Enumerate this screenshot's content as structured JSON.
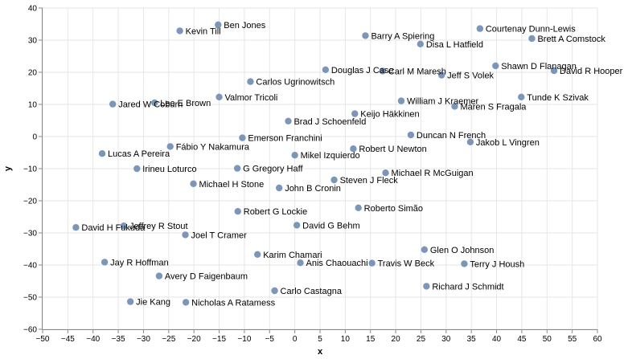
{
  "chart_data": {
    "type": "scatter",
    "title": "",
    "xlabel": "x",
    "ylabel": "y",
    "xlim": [
      -50,
      60
    ],
    "ylim": [
      -60,
      40
    ],
    "x_ticks": [
      -50,
      -45,
      -40,
      -35,
      -30,
      -25,
      -20,
      -15,
      -10,
      -5,
      0,
      5,
      10,
      15,
      20,
      25,
      30,
      35,
      40,
      45,
      50,
      55,
      60
    ],
    "y_ticks": [
      -60,
      -50,
      -40,
      -30,
      -20,
      -10,
      0,
      10,
      20,
      30,
      40
    ],
    "grid": true,
    "point_color": "#7b96b8",
    "points": [
      {
        "label": "Ben Jones",
        "x": -15.2,
        "y": 34.8
      },
      {
        "label": "Kevin Till",
        "x": -22.8,
        "y": 32.9
      },
      {
        "label": "Barry A Spiering",
        "x": 14.0,
        "y": 31.4
      },
      {
        "label": "Disa L Hatfield",
        "x": 24.9,
        "y": 28.8
      },
      {
        "label": "Courtenay Dunn-Lewis",
        "x": 36.7,
        "y": 33.6
      },
      {
        "label": "Brett A Comstock",
        "x": 47.0,
        "y": 30.5
      },
      {
        "label": "Shawn D Flanagan",
        "x": 39.8,
        "y": 22.0
      },
      {
        "label": "David R Hooper",
        "x": 51.4,
        "y": 20.5
      },
      {
        "label": "Douglas J Case",
        "x": 6.1,
        "y": 20.8
      },
      {
        "label": "Carl M Maresh",
        "x": 17.4,
        "y": 20.4
      },
      {
        "label": "Jeff S Volek",
        "x": 29.1,
        "y": 19.1
      },
      {
        "label": "Carlos Ugrinowitsch",
        "x": -8.8,
        "y": 17.1
      },
      {
        "label": "Valmor Tricoli",
        "x": -15.0,
        "y": 12.3
      },
      {
        "label": "Lee E Brown",
        "x": -27.8,
        "y": 10.5
      },
      {
        "label": "Jared W Coburn",
        "x": -36.1,
        "y": 10.1
      },
      {
        "label": "Tunde K Szivak",
        "x": 44.9,
        "y": 12.3
      },
      {
        "label": "William J Kraemer",
        "x": 21.1,
        "y": 11.1
      },
      {
        "label": "Maren S Fragala",
        "x": 31.7,
        "y": 9.4
      },
      {
        "label": "Keijo Häkkinen",
        "x": 11.9,
        "y": 7.1
      },
      {
        "label": "Brad J Schoenfeld",
        "x": -1.3,
        "y": 4.8
      },
      {
        "label": "Duncan N French",
        "x": 23.0,
        "y": 0.5
      },
      {
        "label": "Jakob L Vingren",
        "x": 34.8,
        "y": -1.7
      },
      {
        "label": "Emerson Franchini",
        "x": -10.4,
        "y": -0.4
      },
      {
        "label": "Fábio Y Nakamura",
        "x": -24.7,
        "y": -3.1
      },
      {
        "label": "Lucas A Pereira",
        "x": -38.2,
        "y": -5.3
      },
      {
        "label": "Robert U Newton",
        "x": 11.6,
        "y": -3.8
      },
      {
        "label": "Mikel Izquierdo",
        "x": 0.0,
        "y": -5.8
      },
      {
        "label": "Irineu Loturco",
        "x": -31.3,
        "y": -10.0
      },
      {
        "label": "G Gregory Haff",
        "x": -11.4,
        "y": -9.9
      },
      {
        "label": "Michael R McGuigan",
        "x": 18.0,
        "y": -11.3
      },
      {
        "label": "Steven J Fleck",
        "x": 7.8,
        "y": -13.5
      },
      {
        "label": "Michael H Stone",
        "x": -20.1,
        "y": -14.7
      },
      {
        "label": "John B Cronin",
        "x": -3.1,
        "y": -16.0
      },
      {
        "label": "Robert G Lockie",
        "x": -11.3,
        "y": -23.3
      },
      {
        "label": "Roberto Simão",
        "x": 12.6,
        "y": -22.2
      },
      {
        "label": "David G Behm",
        "x": 0.4,
        "y": -27.6
      },
      {
        "label": "David H Fukuda",
        "x": -43.4,
        "y": -28.3
      },
      {
        "label": "Jeffrey R Stout",
        "x": -33.9,
        "y": -27.8
      },
      {
        "label": "Joel T Cramer",
        "x": -21.7,
        "y": -30.6
      },
      {
        "label": "Glen O Johnson",
        "x": 25.7,
        "y": -35.2
      },
      {
        "label": "Karim Chamari",
        "x": -7.4,
        "y": -36.7
      },
      {
        "label": "Jay R Hoffman",
        "x": -37.7,
        "y": -39.1
      },
      {
        "label": "Anis Chaouachi",
        "x": 1.1,
        "y": -39.3
      },
      {
        "label": "Travis W Beck",
        "x": 15.3,
        "y": -39.4
      },
      {
        "label": "Terry J Housh",
        "x": 33.6,
        "y": -39.6
      },
      {
        "label": "Avery D Faigenbaum",
        "x": -26.9,
        "y": -43.4
      },
      {
        "label": "Richard J Schmidt",
        "x": 26.1,
        "y": -46.6
      },
      {
        "label": "Carlo Castagna",
        "x": -4.0,
        "y": -48.0
      },
      {
        "label": "Jie Kang",
        "x": -32.6,
        "y": -51.4
      },
      {
        "label": "Nicholas A Ratamess",
        "x": -21.6,
        "y": -51.6
      }
    ]
  }
}
